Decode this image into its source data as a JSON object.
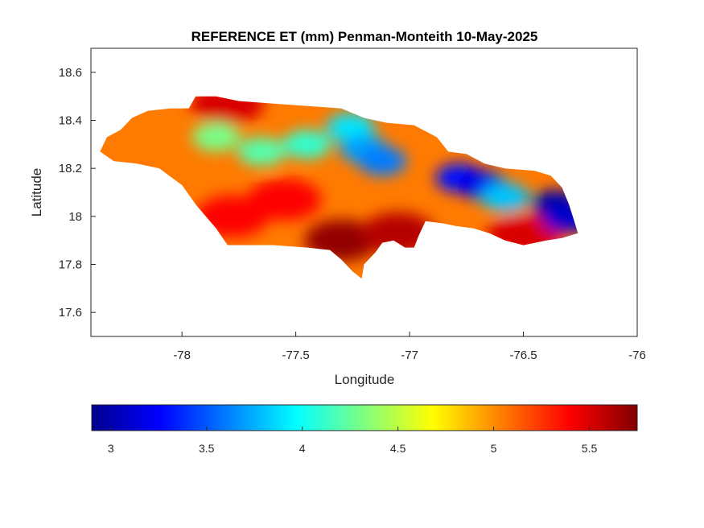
{
  "chart_data": {
    "type": "heatmap",
    "title": "REFERENCE ET (mm) Penman-Monteith 10-May-2025",
    "xlabel": "Longitude",
    "ylabel": "Latitude",
    "xlim": [
      -78.4,
      -76.0
    ],
    "ylim": [
      17.5,
      18.7
    ],
    "x_ticks": [
      "-78",
      "-77.5",
      "-77",
      "-76.5",
      "-76"
    ],
    "x_tick_values": [
      -78,
      -77.5,
      -77,
      -76.5,
      -76
    ],
    "y_ticks": [
      "18.6",
      "18.4",
      "18.2",
      "18",
      "17.8",
      "17.6"
    ],
    "y_tick_values": [
      18.6,
      18.4,
      18.2,
      18.0,
      17.8,
      17.6
    ],
    "colormap": "jet",
    "clim": [
      2.9,
      5.75
    ],
    "colorbar_ticks": [
      "3",
      "3.5",
      "4",
      "4.5",
      "5",
      "5.5"
    ],
    "colorbar_tick_values": [
      3,
      3.5,
      4,
      4.5,
      5,
      5.5
    ],
    "colorbar_location": "south",
    "grid": false,
    "region_outline": [
      [
        -78.36,
        18.27
      ],
      [
        -78.33,
        18.33
      ],
      [
        -78.27,
        18.36
      ],
      [
        -78.22,
        18.41
      ],
      [
        -78.15,
        18.44
      ],
      [
        -78.05,
        18.45
      ],
      [
        -77.97,
        18.45
      ],
      [
        -77.94,
        18.5
      ],
      [
        -77.85,
        18.5
      ],
      [
        -77.75,
        18.48
      ],
      [
        -77.6,
        18.47
      ],
      [
        -77.45,
        18.46
      ],
      [
        -77.3,
        18.45
      ],
      [
        -77.2,
        18.41
      ],
      [
        -77.1,
        18.39
      ],
      [
        -76.98,
        18.38
      ],
      [
        -76.88,
        18.33
      ],
      [
        -76.83,
        18.27
      ],
      [
        -76.75,
        18.26
      ],
      [
        -76.67,
        18.22
      ],
      [
        -76.58,
        18.2
      ],
      [
        -76.45,
        18.19
      ],
      [
        -76.38,
        18.17
      ],
      [
        -76.33,
        18.12
      ],
      [
        -76.3,
        18.05
      ],
      [
        -76.28,
        17.99
      ],
      [
        -76.26,
        17.93
      ],
      [
        -76.33,
        17.91
      ],
      [
        -76.4,
        17.9
      ],
      [
        -76.5,
        17.88
      ],
      [
        -76.58,
        17.9
      ],
      [
        -76.65,
        17.93
      ],
      [
        -76.72,
        17.95
      ],
      [
        -76.8,
        17.96
      ],
      [
        -76.85,
        17.97
      ],
      [
        -76.93,
        17.98
      ],
      [
        -76.96,
        17.92
      ],
      [
        -76.98,
        17.87
      ],
      [
        -77.02,
        17.87
      ],
      [
        -77.07,
        17.9
      ],
      [
        -77.12,
        17.89
      ],
      [
        -77.15,
        17.85
      ],
      [
        -77.2,
        17.8
      ],
      [
        -77.21,
        17.74
      ],
      [
        -77.25,
        17.77
      ],
      [
        -77.3,
        17.82
      ],
      [
        -77.35,
        17.86
      ],
      [
        -77.45,
        17.87
      ],
      [
        -77.6,
        17.88
      ],
      [
        -77.72,
        17.88
      ],
      [
        -77.8,
        17.88
      ],
      [
        -77.85,
        17.95
      ],
      [
        -77.94,
        18.05
      ],
      [
        -78.0,
        18.13
      ],
      [
        -78.1,
        18.2
      ],
      [
        -78.2,
        18.22
      ],
      [
        -78.3,
        18.23
      ]
    ],
    "low_et_zones": [
      {
        "lon": -77.26,
        "lat": 18.37,
        "value": 3.9
      },
      {
        "lon": -77.2,
        "lat": 18.28,
        "value": 3.7
      },
      {
        "lon": -77.12,
        "lat": 18.23,
        "value": 3.6
      },
      {
        "lon": -77.45,
        "lat": 18.3,
        "value": 4.1
      },
      {
        "lon": -77.65,
        "lat": 18.27,
        "value": 4.2
      },
      {
        "lon": -77.85,
        "lat": 18.33,
        "value": 4.3
      },
      {
        "lon": -76.78,
        "lat": 18.16,
        "value": 3.3
      },
      {
        "lon": -76.68,
        "lat": 18.13,
        "value": 3.2
      },
      {
        "lon": -76.58,
        "lat": 18.08,
        "value": 3.8
      },
      {
        "lon": -76.36,
        "lat": 18.05,
        "value": 3.0
      },
      {
        "lon": -76.31,
        "lat": 17.99,
        "value": 3.1
      }
    ],
    "high_et_zones": [
      {
        "lon": -77.3,
        "lat": 17.9,
        "value": 5.7
      },
      {
        "lon": -77.05,
        "lat": 17.93,
        "value": 5.6
      },
      {
        "lon": -77.8,
        "lat": 18.47,
        "value": 5.5
      },
      {
        "lon": -77.55,
        "lat": 18.07,
        "value": 5.4
      },
      {
        "lon": -76.5,
        "lat": 17.92,
        "value": 5.5
      },
      {
        "lon": -77.78,
        "lat": 18.0,
        "value": 5.4
      }
    ]
  }
}
